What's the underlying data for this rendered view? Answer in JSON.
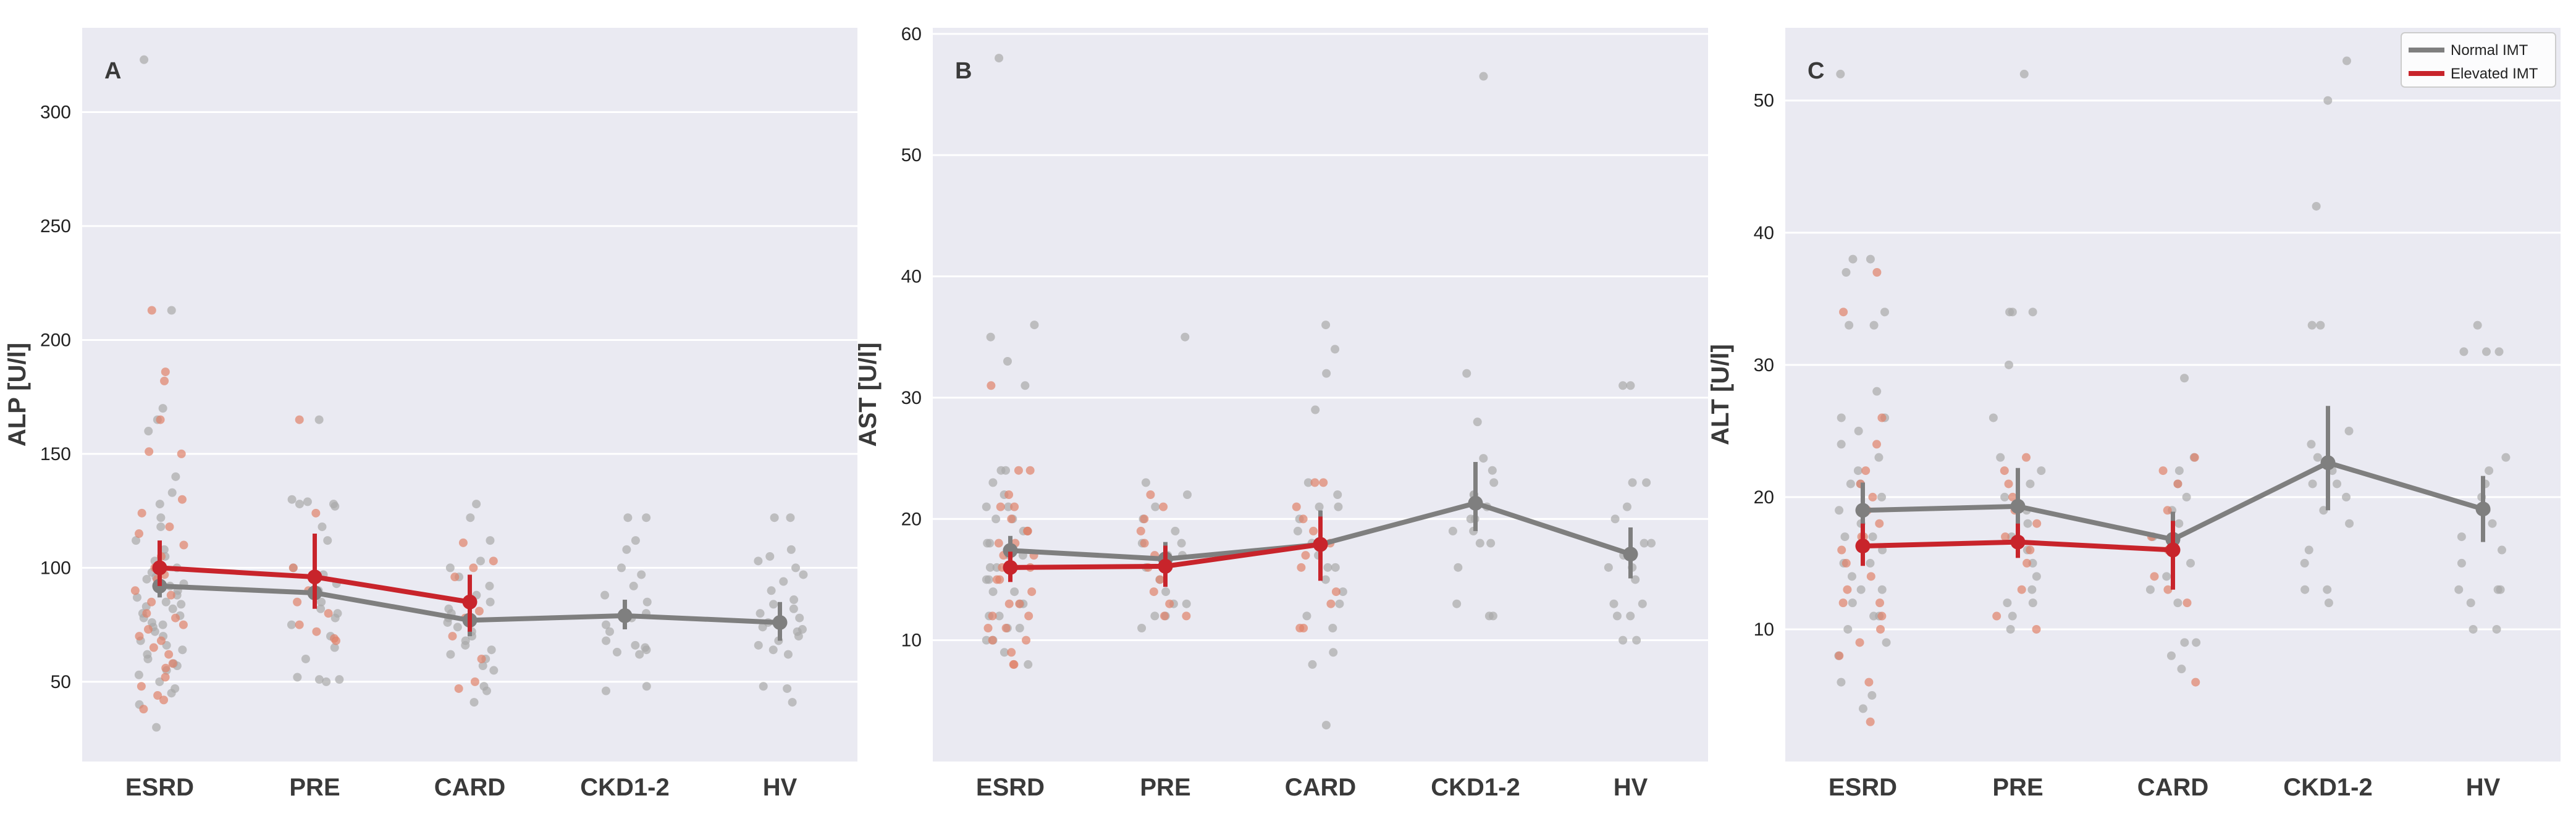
{
  "colors": {
    "normal": "#7f7f7f",
    "elevated": "#c8242b",
    "normal_dots": "#a9a9a9",
    "elevated_dots": "#e0826a",
    "background": "#eaeaf2",
    "grid": "#ffffff"
  },
  "legend": {
    "placement": "top-right of panel C",
    "entries": [
      {
        "label": "Normal IMT",
        "series": "normal"
      },
      {
        "label": "Elevated IMT",
        "series": "elevated"
      }
    ]
  },
  "chart_data": [
    {
      "type": "scatter",
      "panel_label": "A",
      "title": "",
      "xlabel": "",
      "ylabel": "ALP [U/l]",
      "categories": [
        "ESRD",
        "PRE",
        "CARD",
        "CKD1-2",
        "HV"
      ],
      "ylim": [
        15,
        337
      ],
      "yticks": [
        50,
        100,
        150,
        200,
        250,
        300
      ],
      "series": [
        {
          "name": "Normal IMT",
          "key": "normal",
          "means": [
            92,
            89,
            77,
            79,
            76
          ],
          "ci_low": [
            87,
            83,
            70,
            73,
            68
          ],
          "ci_high": [
            98,
            96,
            83,
            86,
            85
          ]
        },
        {
          "name": "Elevated IMT",
          "key": "elevated",
          "means": [
            100,
            96,
            85,
            null,
            null
          ],
          "ci_low": [
            92,
            82,
            72,
            null,
            null
          ],
          "ci_high": [
            112,
            115,
            97,
            null,
            null
          ]
        }
      ],
      "points": {
        "normal": [
          [
            323,
            213,
            170,
            165,
            160,
            140,
            133,
            128,
            122,
            118,
            112,
            108,
            105,
            103,
            100,
            98,
            96,
            95,
            93,
            92,
            90,
            88,
            87,
            85,
            84,
            83,
            82,
            80,
            79,
            78,
            76,
            75,
            74,
            72,
            70,
            68,
            66,
            64,
            62,
            60,
            58,
            57,
            55,
            53,
            50,
            47,
            45,
            40,
            30
          ],
          [
            165,
            130,
            129,
            128,
            128,
            127,
            118,
            112,
            100,
            97,
            93,
            90,
            88,
            85,
            82,
            80,
            78,
            75,
            70,
            65,
            60,
            52,
            51,
            51,
            50
          ],
          [
            128,
            122,
            112,
            103,
            100,
            96,
            92,
            88,
            85,
            82,
            80,
            78,
            76,
            74,
            72,
            70,
            68,
            66,
            64,
            62,
            60,
            57,
            55,
            48,
            46,
            41
          ],
          [
            122,
            122,
            112,
            108,
            100,
            97,
            92,
            88,
            85,
            80,
            78,
            75,
            72,
            68,
            66,
            65,
            64,
            63,
            62,
            48,
            46
          ],
          [
            122,
            122,
            108,
            105,
            103,
            100,
            97,
            94,
            90,
            86,
            84,
            82,
            80,
            78,
            76,
            74,
            73,
            72,
            70,
            68,
            66,
            64,
            62,
            48,
            47,
            41
          ]
        ],
        "elevated": [
          [
            213,
            186,
            182,
            165,
            151,
            150,
            130,
            124,
            118,
            115,
            110,
            105,
            100,
            97,
            95,
            92,
            90,
            88,
            85,
            80,
            78,
            75,
            73,
            70,
            68,
            65,
            62,
            58,
            56,
            52,
            48,
            44,
            42,
            38
          ],
          [
            165,
            124,
            100,
            97,
            90,
            85,
            80,
            75,
            72,
            69,
            68
          ],
          [
            111,
            103,
            100,
            96,
            85,
            81,
            78,
            70,
            60,
            50,
            47
          ]
        ]
      }
    },
    {
      "type": "scatter",
      "panel_label": "B",
      "title": "",
      "xlabel": "",
      "ylabel": "AST [U/l]",
      "categories": [
        "ESRD",
        "PRE",
        "CARD",
        "CKD1-2",
        "HV"
      ],
      "ylim": [
        0,
        60.5
      ],
      "yticks": [
        10,
        20,
        30,
        40,
        50,
        60
      ],
      "series": [
        {
          "name": "Normal IMT",
          "key": "normal",
          "means": [
            17.4,
            16.7,
            17.9,
            21.3,
            17.1
          ],
          "ci_low": [
            16.3,
            15.3,
            15.8,
            19.0,
            15.1
          ],
          "ci_high": [
            18.6,
            18.1,
            20.7,
            24.7,
            19.3
          ]
        },
        {
          "name": "Elevated IMT",
          "key": "elevated",
          "means": [
            16.0,
            16.1,
            17.9,
            null,
            null
          ],
          "ci_low": [
            14.8,
            14.4,
            14.9,
            null,
            null
          ],
          "ci_high": [
            17.3,
            17.8,
            20.2,
            null,
            null
          ]
        }
      ],
      "points": {
        "normal": [
          [
            58,
            36,
            35,
            33,
            31,
            24,
            24,
            23,
            22,
            21,
            21,
            20,
            20,
            19,
            19,
            18,
            18,
            17,
            17,
            16,
            16,
            15,
            15,
            14,
            14,
            13,
            13,
            12,
            12,
            11,
            11,
            10,
            10,
            9,
            8
          ],
          [
            35,
            23,
            22,
            21,
            20,
            19,
            18,
            18,
            17,
            17,
            16,
            16,
            15,
            14,
            13,
            13,
            12,
            12,
            11
          ],
          [
            36,
            34,
            32,
            29,
            23,
            22,
            21,
            21,
            20,
            19,
            18,
            17,
            16,
            16,
            15,
            14,
            13,
            12,
            11,
            9,
            8,
            3
          ],
          [
            56.5,
            32,
            28,
            25,
            24,
            23,
            22,
            22,
            21,
            20,
            20,
            19,
            19,
            18,
            18,
            16,
            13,
            12,
            12
          ],
          [
            31,
            31,
            23,
            23,
            21,
            20,
            18,
            18,
            17,
            16,
            16,
            15,
            13,
            13,
            12,
            12,
            10,
            10
          ]
        ],
        "elevated": [
          [
            31,
            24,
            24,
            22,
            21,
            21,
            20,
            19,
            19,
            18,
            18,
            17,
            17,
            16,
            16,
            15,
            15,
            14,
            13,
            13,
            12,
            12,
            11,
            11,
            10,
            10,
            9,
            8,
            8
          ],
          [
            22,
            21,
            20,
            19,
            18,
            17,
            16,
            15,
            14,
            13,
            12,
            12
          ],
          [
            23,
            23,
            21,
            20,
            19,
            18,
            17,
            16,
            14,
            13,
            11,
            11
          ]
        ]
      }
    },
    {
      "type": "scatter",
      "panel_label": "C",
      "title": "",
      "xlabel": "",
      "ylabel": "ALT [U/l]",
      "categories": [
        "ESRD",
        "PRE",
        "CARD",
        "CKD1-2",
        "HV"
      ],
      "ylim": [
        0,
        55.5
      ],
      "yticks": [
        10,
        20,
        30,
        40,
        50
      ],
      "series": [
        {
          "name": "Normal IMT",
          "key": "normal",
          "means": [
            19.0,
            19.3,
            16.8,
            22.6,
            19.1
          ],
          "ci_low": [
            17.3,
            16.7,
            14.9,
            19.0,
            16.6
          ],
          "ci_high": [
            21.1,
            22.2,
            18.9,
            26.9,
            21.6
          ]
        },
        {
          "name": "Elevated IMT",
          "key": "elevated",
          "means": [
            16.3,
            16.6,
            16.0,
            null,
            null
          ],
          "ci_low": [
            14.8,
            15.4,
            13.0,
            null,
            null
          ],
          "ci_high": [
            18.0,
            18.0,
            18.2,
            null,
            null
          ]
        }
      ],
      "points": {
        "normal": [
          [
            52,
            38,
            38,
            37,
            34,
            33,
            33,
            28,
            26,
            26,
            25,
            24,
            23,
            22,
            21,
            21,
            20,
            19,
            19,
            18,
            17,
            17,
            16,
            15,
            15,
            14,
            13,
            13,
            12,
            11,
            11,
            10,
            9,
            8,
            6,
            5,
            4
          ],
          [
            52,
            34,
            34,
            34,
            30,
            26,
            23,
            22,
            21,
            20,
            19,
            18,
            17,
            16,
            15,
            14,
            13,
            12,
            12,
            11,
            10
          ],
          [
            29,
            23,
            22,
            21,
            20,
            19,
            18,
            17,
            16,
            15,
            14,
            13,
            12,
            9,
            9,
            8,
            7
          ],
          [
            53,
            50,
            42,
            33,
            33,
            25,
            24,
            23,
            22,
            21,
            21,
            20,
            19,
            18,
            16,
            15,
            13,
            13,
            12
          ],
          [
            33,
            31,
            31,
            31,
            23,
            22,
            21,
            20,
            19,
            18,
            17,
            16,
            15,
            13,
            13,
            13,
            12,
            10,
            10
          ]
        ],
        "elevated": [
          [
            37,
            34,
            26,
            24,
            22,
            21,
            20,
            19,
            18,
            17,
            17,
            16,
            15,
            14,
            13,
            12,
            12,
            11,
            10,
            9,
            8,
            6,
            3
          ],
          [
            23,
            22,
            21,
            20,
            19,
            18,
            17,
            16,
            15,
            13,
            11,
            10
          ],
          [
            23,
            22,
            21,
            19,
            17,
            16,
            14,
            13,
            12,
            6
          ]
        ]
      }
    }
  ]
}
